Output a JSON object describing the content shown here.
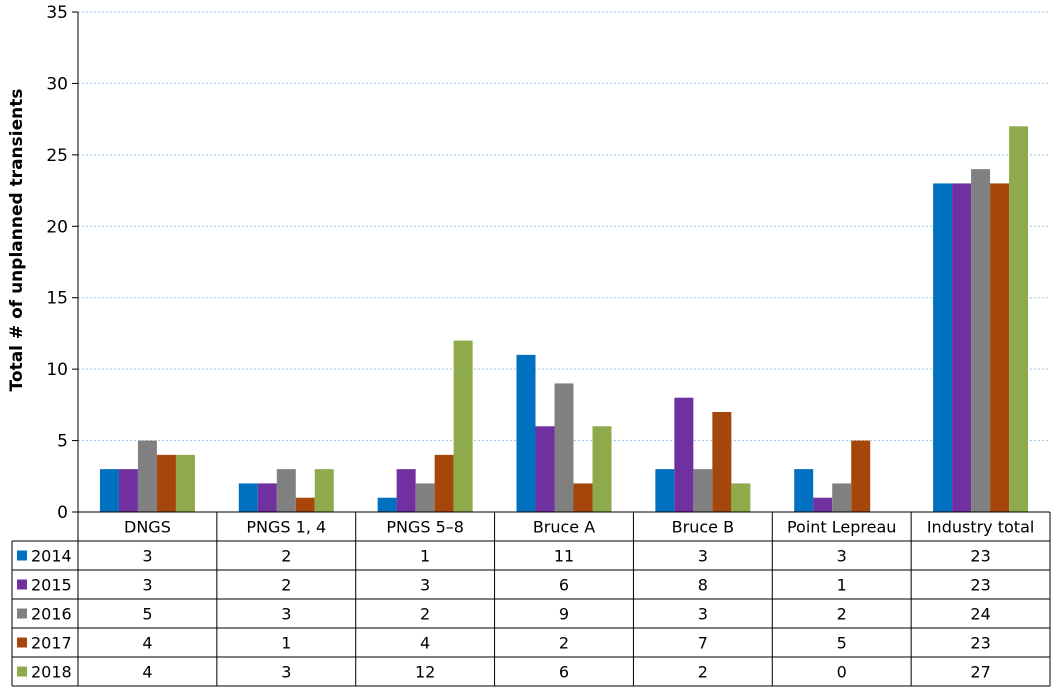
{
  "chart_data": {
    "type": "bar",
    "ylabel": "Total # of unplanned transients",
    "ylim": [
      0,
      35
    ],
    "yticks": [
      0,
      5,
      10,
      15,
      20,
      25,
      30,
      35
    ],
    "grid": true,
    "legend": "data-table",
    "categories": [
      "DNGS",
      "PNGS 1, 4",
      "PNGS 5–8",
      "Bruce A",
      "Bruce B",
      "Point Lepreau",
      "Industry total"
    ],
    "series": [
      {
        "name": "2014",
        "color": "#0070C0",
        "values": [
          3,
          2,
          1,
          11,
          3,
          3,
          23
        ]
      },
      {
        "name": "2015",
        "color": "#7030A0",
        "values": [
          3,
          2,
          3,
          6,
          8,
          1,
          23
        ]
      },
      {
        "name": "2016",
        "color": "#808080",
        "values": [
          5,
          3,
          2,
          9,
          3,
          2,
          24
        ]
      },
      {
        "name": "2017",
        "color": "#A5460A",
        "values": [
          4,
          1,
          4,
          2,
          7,
          5,
          23
        ]
      },
      {
        "name": "2018",
        "color": "#8FAA4B",
        "values": [
          4,
          3,
          12,
          6,
          2,
          0,
          27
        ]
      }
    ]
  }
}
